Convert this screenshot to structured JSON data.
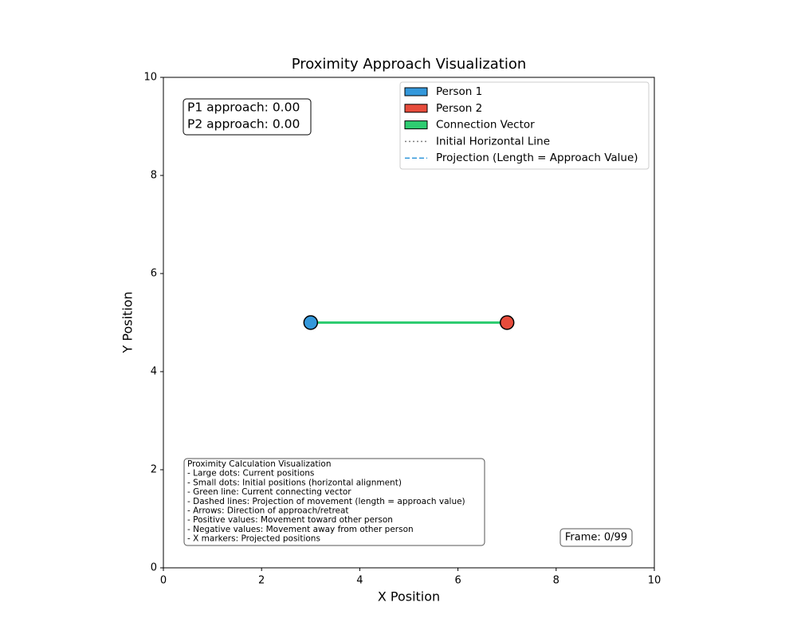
{
  "chart_data": {
    "type": "scatter",
    "title": "Proximity Approach Visualization",
    "xlabel": "X Position",
    "ylabel": "Y Position",
    "xlim": [
      0,
      10
    ],
    "ylim": [
      0,
      10
    ],
    "xticks": [
      0,
      2,
      4,
      6,
      8,
      10
    ],
    "yticks": [
      0,
      2,
      4,
      6,
      8,
      10
    ],
    "legend": "upper right",
    "series": [
      {
        "name": "Person 1",
        "color": "#3498db",
        "legend_marker": "patch",
        "x": [
          3
        ],
        "values": [
          5
        ]
      },
      {
        "name": "Person 2",
        "color": "#e74c3c",
        "legend_marker": "patch",
        "x": [
          7
        ],
        "values": [
          5
        ]
      },
      {
        "name": "Connection Vector",
        "color": "#2ecc71",
        "legend_marker": "patch",
        "style": "line",
        "x": [
          3,
          7
        ],
        "values": [
          5,
          5
        ]
      },
      {
        "name": "Initial Horizontal Line",
        "color": "#808080",
        "legend_marker": "dotted",
        "style": "line",
        "x": [],
        "values": []
      },
      {
        "name": "Projection (Length = Approach Value)",
        "color": "#3498db",
        "legend_marker": "dashed",
        "style": "line",
        "x": [],
        "values": []
      }
    ],
    "annotations": {
      "approach": [
        "P1 approach: 0.00",
        "P2 approach: 0.00"
      ],
      "info": [
        "Proximity Calculation Visualization",
        "- Large dots: Current positions",
        "- Small dots: Initial positions (horizontal alignment)",
        "- Green line: Current connecting vector",
        "- Dashed lines: Projection of movement (length = approach value)",
        "- Arrows: Direction of approach/retreat",
        "- Positive values: Movement toward other person",
        "- Negative values: Movement away from other person",
        "- X markers: Projected positions"
      ],
      "frame": "Frame: 0/99"
    }
  }
}
